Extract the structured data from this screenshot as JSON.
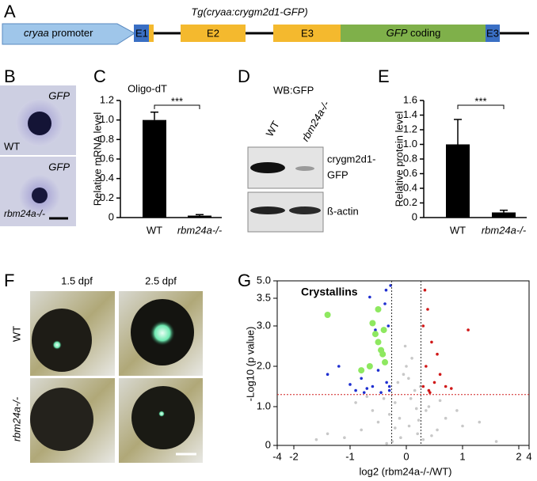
{
  "panel_a": {
    "label": "A",
    "title": "Tg(cryaa:crygm2d1-GFP)",
    "promoter_italic": "cryaa",
    "promoter_rest": "promoter",
    "e1": "E1",
    "e2": "E2",
    "e3": "E3",
    "gfp_italic": "GFP",
    "gfp_rest": "coding",
    "e3_end": "E3"
  },
  "panel_b": {
    "label": "B",
    "stain": "GFP",
    "wt": "WT",
    "mutant": "rbm24a-/-"
  },
  "panel_d": {
    "label": "D",
    "title": "WB:GFP",
    "lanes": [
      "WT",
      "rbm24a-/-"
    ],
    "band_1": [
      "crygm2d1-",
      "GFP"
    ],
    "band_2": "ß-actin"
  },
  "panel_f": {
    "label": "F",
    "times": [
      "1.5 dpf",
      "2.5 dpf"
    ],
    "rows": [
      "WT",
      "rbm24a-/-"
    ]
  },
  "chart_data": [
    {
      "type": "bar",
      "panel_label": "C",
      "title": "Oligo-dT",
      "y_label": "Relative mRNA level",
      "categories": [
        "WT",
        "rbm24a-/-"
      ],
      "values": [
        1.0,
        0.02
      ],
      "errors": [
        0.08,
        0.01
      ],
      "color": "#000000",
      "significance": "***",
      "ylim": [
        0,
        1.2
      ],
      "yticks": [
        0,
        0.2,
        0.4,
        0.6,
        0.8,
        {
          "value": 1,
          "label": "1.0"
        },
        1.2
      ]
    },
    {
      "type": "bar",
      "panel_label": "E",
      "y_label": "Relative protein level",
      "categories": [
        "WT",
        "rbm24a-/-"
      ],
      "values": [
        1.0,
        0.07
      ],
      "errors": [
        0.34,
        0.03
      ],
      "color": "#000000",
      "significance": "***",
      "ylim": [
        0,
        1.6
      ],
      "yticks": [
        0,
        0.2,
        0.4,
        0.6,
        0.8,
        {
          "value": 1,
          "label": "1.0"
        },
        1.2,
        1.4,
        1.6
      ]
    },
    {
      "type": "scatter",
      "panel_label": "G",
      "x_label": "log2 (rbm24a-/-/WT)",
      "y_label": "-Log10 (p value)",
      "xlim": [
        -4,
        4
      ],
      "xticks": [
        -4,
        -2,
        -1,
        0,
        1,
        2,
        4
      ],
      "ylim": [
        0,
        5
      ],
      "yticks": [
        0,
        {
          "value": 1,
          "label": "1.0"
        },
        {
          "value": 2,
          "label": "2.0"
        },
        {
          "value": 3,
          "label": "3.0"
        },
        3.5,
        {
          "value": 5,
          "label": "5.0"
        }
      ],
      "threshold_x": [
        -0.26,
        0.26
      ],
      "threshold_y": 1.3,
      "series": [
        {
          "color": "#c8c8c8",
          "x": [
            -0.1,
            0.05,
            -0.3,
            0.2,
            -0.5,
            0.4,
            -0.8,
            0.7,
            -1.1,
            1.0,
            -0.2,
            0.15,
            -0.4,
            0.35,
            -0.6,
            0.55,
            -0.05,
            0.1,
            -0.15,
            0.25,
            -1.4,
            1.3,
            -0.9,
            0.9,
            -0.7,
            0.6,
            -0.25,
            0.3,
            0,
            0.08,
            -0.12,
            0.18,
            -0.35,
            0.45,
            -1.6,
            1.6,
            -0.02,
            0.04,
            -0.2,
            0.22
          ],
          "values": [
            0.2,
            0.5,
            0.8,
            0.3,
            0.6,
            1.0,
            0.4,
            0.7,
            0.2,
            0.5,
            1.1,
            1.4,
            1.2,
            0.9,
            0.9,
            0.4,
            1.8,
            2.2,
            1.6,
            1.5,
            0.3,
            0.6,
            1.1,
            0.9,
            1.25,
            1.15,
            0.1,
            0.15,
            2.0,
            1.2,
            0.7,
            0.95,
            0.05,
            0.25,
            0.15,
            0.1,
            2.5,
            1.7,
            0.45,
            0.65
          ]
        },
        {
          "color": "#1f2fd0",
          "x": [
            -0.3,
            -0.35,
            -0.4,
            -0.45,
            -0.5,
            -0.6,
            -0.7,
            -0.8,
            -0.9,
            -1.0,
            -1.2,
            -1.4,
            -0.32,
            -0.38,
            -0.55,
            -0.65,
            -0.28,
            -0.42,
            -0.75,
            -0.3,
            -0.36,
            -0.5
          ],
          "values": [
            1.4,
            1.6,
            2.1,
            1.35,
            2.6,
            1.5,
            1.45,
            1.7,
            1.4,
            1.55,
            2.0,
            1.8,
            3.0,
            3.4,
            2.9,
            3.6,
            4.6,
            2.4,
            1.35,
            1.5,
            4.2,
            1.9
          ]
        },
        {
          "color": "#d01818",
          "x": [
            0.3,
            0.35,
            0.4,
            0.45,
            0.5,
            0.6,
            0.7,
            0.8,
            0.3,
            0.38,
            0.55,
            1.1,
            0.42,
            0.33
          ],
          "values": [
            1.5,
            2.0,
            1.4,
            2.6,
            1.6,
            1.8,
            1.5,
            1.45,
            3.0,
            3.3,
            2.3,
            2.9,
            1.35,
            4.2
          ]
        },
        {
          "name": "Crystallins",
          "color": "#8ee860",
          "x": [
            -1.4,
            -0.6,
            -0.55,
            -0.5,
            -0.45,
            -0.4,
            -0.42,
            -0.65,
            -0.8,
            -0.5,
            -0.38
          ],
          "values": [
            3.2,
            3.05,
            2.8,
            2.6,
            2.4,
            2.9,
            2.3,
            2.0,
            1.9,
            3.3,
            2.1
          ]
        }
      ]
    }
  ]
}
